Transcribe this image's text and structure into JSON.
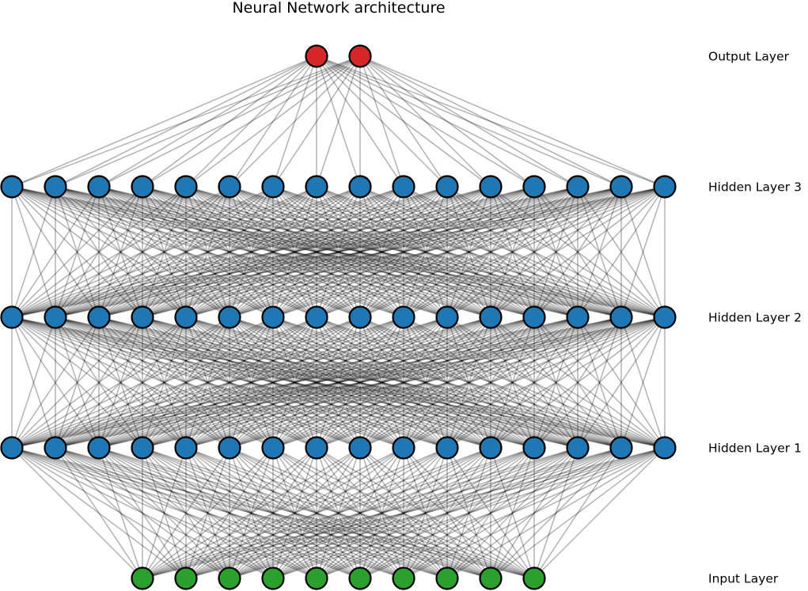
{
  "title": "Neural Network architecture",
  "colors": {
    "input": "#2ca02c",
    "hidden": "#1f77b4",
    "output": "#d62728"
  },
  "layers": [
    {
      "id": "input",
      "label": "Input Layer",
      "neurons": 10,
      "color_key": "input"
    },
    {
      "id": "hidden1",
      "label": "Hidden Layer 1",
      "neurons": 16,
      "color_key": "hidden"
    },
    {
      "id": "hidden2",
      "label": "Hidden Layer 2",
      "neurons": 16,
      "color_key": "hidden"
    },
    {
      "id": "hidden3",
      "label": "Hidden Layer 3",
      "neurons": 16,
      "color_key": "hidden"
    },
    {
      "id": "output",
      "label": "Output Layer",
      "neurons": 2,
      "color_key": "output"
    }
  ]
}
